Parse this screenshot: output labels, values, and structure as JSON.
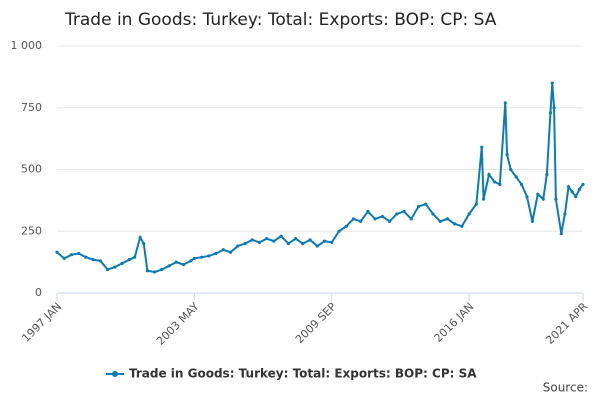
{
  "chart_data": {
    "type": "line",
    "title": "Trade in Goods: Turkey: Total: Exports: BOP: CP: SA",
    "source": "Source:",
    "x": [
      "1997 JAN",
      "1997 MAY",
      "1997 SEP",
      "1998 JAN",
      "1998 MAY",
      "1998 SEP",
      "1999 JAN",
      "1999 MAY",
      "1999 SEP",
      "2000 JAN",
      "2000 MAY",
      "2000 AUG",
      "2000 NOV",
      "2001 JAN",
      "2001 MAR",
      "2001 JUL",
      "2001 NOV",
      "2002 MAR",
      "2002 JUL",
      "2002 NOV",
      "2003 MAR",
      "2003 MAY",
      "2003 SEP",
      "2004 JAN",
      "2004 MAY",
      "2004 SEP",
      "2005 JAN",
      "2005 MAY",
      "2005 SEP",
      "2006 JAN",
      "2006 MAY",
      "2006 SEP",
      "2007 JAN",
      "2007 MAY",
      "2007 SEP",
      "2008 JAN",
      "2008 MAY",
      "2008 SEP",
      "2009 JAN",
      "2009 MAY",
      "2009 SEP",
      "2010 JAN",
      "2010 MAY",
      "2010 SEP",
      "2011 JAN",
      "2011 MAY",
      "2011 SEP",
      "2012 JAN",
      "2012 MAY",
      "2012 SEP",
      "2013 JAN",
      "2013 MAY",
      "2013 SEP",
      "2014 JAN",
      "2014 MAY",
      "2014 SEP",
      "2015 JAN",
      "2015 MAY",
      "2015 SEP",
      "2016 JAN",
      "2016 MAY",
      "2016 AUG",
      "2016 SEP",
      "2016 DEC",
      "2017 MAR",
      "2017 JUN",
      "2017 SEP",
      "2017 OCT",
      "2017 DEC",
      "2018 MAR",
      "2018 JUN",
      "2018 SEP",
      "2018 DEC",
      "2019 MAR",
      "2019 JUN",
      "2019 AUG",
      "2019 OCT",
      "2019 NOV",
      "2019 DEC",
      "2020 JAN",
      "2020 APR",
      "2020 JUN",
      "2020 AUG",
      "2020 OCT",
      "2020 DEC",
      "2021 FEB",
      "2021 APR"
    ],
    "series": [
      {
        "name": "Trade in Goods: Turkey: Total: Exports: BOP: CP: SA",
        "color": "#0c7bb5",
        "values": [
          165,
          140,
          155,
          160,
          145,
          135,
          130,
          95,
          105,
          120,
          135,
          145,
          225,
          200,
          90,
          85,
          95,
          110,
          125,
          115,
          130,
          140,
          145,
          150,
          160,
          175,
          165,
          190,
          200,
          215,
          205,
          220,
          210,
          230,
          200,
          220,
          200,
          215,
          190,
          210,
          205,
          250,
          270,
          300,
          290,
          330,
          300,
          310,
          290,
          320,
          330,
          300,
          350,
          360,
          320,
          290,
          300,
          280,
          270,
          320,
          360,
          590,
          380,
          480,
          450,
          440,
          770,
          560,
          500,
          470,
          440,
          390,
          290,
          400,
          380,
          480,
          730,
          850,
          750,
          380,
          240,
          320,
          430,
          410,
          390,
          420,
          440
        ]
      }
    ],
    "xlim": [
      "1997 JAN",
      "2021 APR"
    ],
    "xticks": [
      "1997 JAN",
      "2003 MAY",
      "2009 SEP",
      "2016 JAN",
      "2021 APR"
    ],
    "ylim": [
      0,
      1000
    ],
    "yticks": [
      0,
      250,
      500,
      750,
      {
        "value": 1000,
        "label": "1 000"
      }
    ],
    "grid": true
  }
}
